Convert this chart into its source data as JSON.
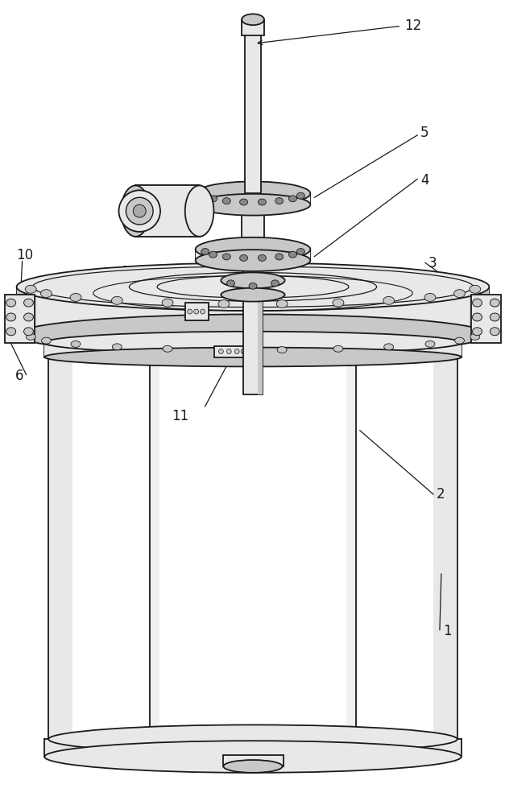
{
  "figure_width": 6.27,
  "figure_height": 10.0,
  "dpi": 100,
  "bg_color": "#ffffff",
  "lc": "#1a1a1a",
  "fill_light": "#f8f8f8",
  "fill_mid": "#e8e8e8",
  "fill_dark": "#c8c8c8",
  "fill_white": "#ffffff",
  "label_fontsize": 12
}
